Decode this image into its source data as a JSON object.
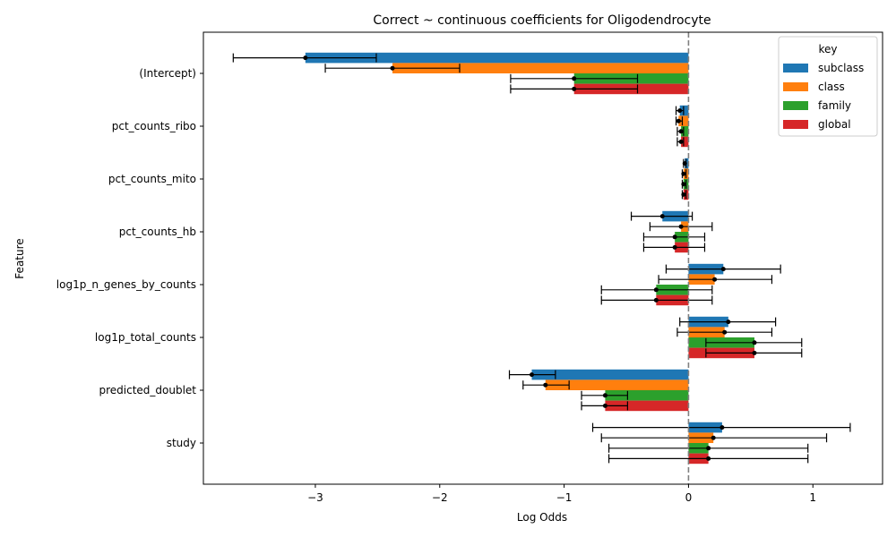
{
  "chart_data": {
    "type": "bar",
    "orientation": "horizontal",
    "title": "Correct ~ continuous coefficients for Oligodendrocyte",
    "xlabel": "Log Odds",
    "ylabel": "Feature",
    "xlim": [
      -3.9,
      1.56
    ],
    "xticks": [
      -3,
      -2,
      -1,
      0,
      1
    ],
    "xtick_labels": [
      "−3",
      "−2",
      "−1",
      "0",
      "1"
    ],
    "reference_line": {
      "x": 0,
      "style": "dashed",
      "color": "#808080"
    },
    "categories": [
      "(Intercept)",
      "pct_counts_ribo",
      "pct_counts_mito",
      "pct_counts_hb",
      "log1p_n_genes_by_counts",
      "log1p_total_counts",
      "predicted_doublet",
      "study"
    ],
    "legend": {
      "title": "key",
      "placement": "top-right"
    },
    "series": [
      {
        "name": "subclass",
        "color": "#1f77b4",
        "values": [
          -3.08,
          -0.07,
          -0.03,
          -0.21,
          0.28,
          0.32,
          -1.26,
          0.27
        ],
        "ci_low": [
          -3.66,
          -0.1,
          -0.04,
          -0.46,
          -0.18,
          -0.07,
          -1.44,
          -0.77
        ],
        "ci_high": [
          -2.51,
          -0.04,
          -0.02,
          0.03,
          0.74,
          0.7,
          -1.07,
          1.3
        ]
      },
      {
        "name": "class",
        "color": "#ff7f0e",
        "values": [
          -2.38,
          -0.08,
          -0.04,
          -0.06,
          0.21,
          0.29,
          -1.15,
          0.2
        ],
        "ci_low": [
          -2.92,
          -0.1,
          -0.05,
          -0.31,
          -0.24,
          -0.09,
          -1.33,
          -0.7
        ],
        "ci_high": [
          -1.84,
          -0.05,
          -0.02,
          0.19,
          0.67,
          0.67,
          -0.96,
          1.11
        ]
      },
      {
        "name": "family",
        "color": "#2ca02c",
        "values": [
          -0.92,
          -0.06,
          -0.04,
          -0.11,
          -0.26,
          0.53,
          -0.67,
          0.16
        ],
        "ci_low": [
          -1.43,
          -0.09,
          -0.05,
          -0.36,
          -0.7,
          0.14,
          -0.86,
          -0.64
        ],
        "ci_high": [
          -0.41,
          -0.04,
          -0.02,
          0.13,
          0.19,
          0.91,
          -0.49,
          0.96
        ]
      },
      {
        "name": "global",
        "color": "#d62728",
        "values": [
          -0.92,
          -0.06,
          -0.04,
          -0.11,
          -0.26,
          0.53,
          -0.67,
          0.16
        ],
        "ci_low": [
          -1.43,
          -0.09,
          -0.05,
          -0.36,
          -0.7,
          0.14,
          -0.86,
          -0.64
        ],
        "ci_high": [
          -0.41,
          -0.04,
          -0.02,
          0.13,
          0.19,
          0.91,
          -0.49,
          0.96
        ]
      }
    ]
  }
}
